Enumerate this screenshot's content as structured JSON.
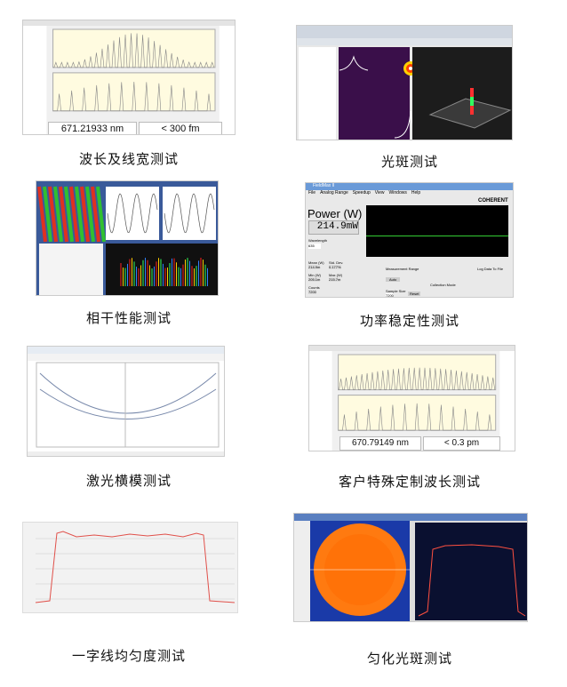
{
  "panels": [
    {
      "caption": "波长及线宽测试",
      "wavelength": "671.21933 nm",
      "linewidth": "< 300 fm"
    },
    {
      "caption": "光斑测试"
    },
    {
      "caption": "相干性能测试"
    },
    {
      "caption": "功率稳定性测试",
      "window_title": "FieldMax II",
      "menu": [
        "File",
        "Analog Range",
        "Speedup",
        "View",
        "Windows",
        "Help"
      ],
      "brand": "COHERENT",
      "power_label": "Power (W)",
      "power_value": "214.9mW",
      "wavelength_label": "Wavelength",
      "wavelength_value": "635",
      "mean_label": "Mean (W)",
      "mean_value": "214.9m",
      "std_label": "Std. Dev.",
      "std_value": "0.177%",
      "min_label": "Min (W)",
      "min_value": "205.1m",
      "max_label": "Max (W)",
      "max_value": "215.7m",
      "counts_label": "Counts",
      "counts_value": "7200",
      "sample_size_label": "Sample Size",
      "sample_size_value": "7200",
      "reset_label": "Reset",
      "log_label": "Log Data To File",
      "collection_label": "Collection Mode",
      "measurement_label": "Measurement Range",
      "measurement_value": "Auto"
    },
    {
      "caption": "激光横模测试"
    },
    {
      "caption": "客户特殊定制波长测试",
      "wavelength": "670.79149 nm",
      "linewidth": "< 0.3 pm"
    },
    {
      "caption": "一字线均匀度测试"
    },
    {
      "caption": "匀化光斑测试"
    }
  ],
  "colors": {
    "chart_bg": "#fffbe0",
    "grid_bg": "#f2f2f2",
    "beam_bg": "#2a0a3a",
    "spot_bg": "#1a3aa8",
    "spot_fill": "#ff7a10",
    "curve_red": "#e0504a"
  }
}
